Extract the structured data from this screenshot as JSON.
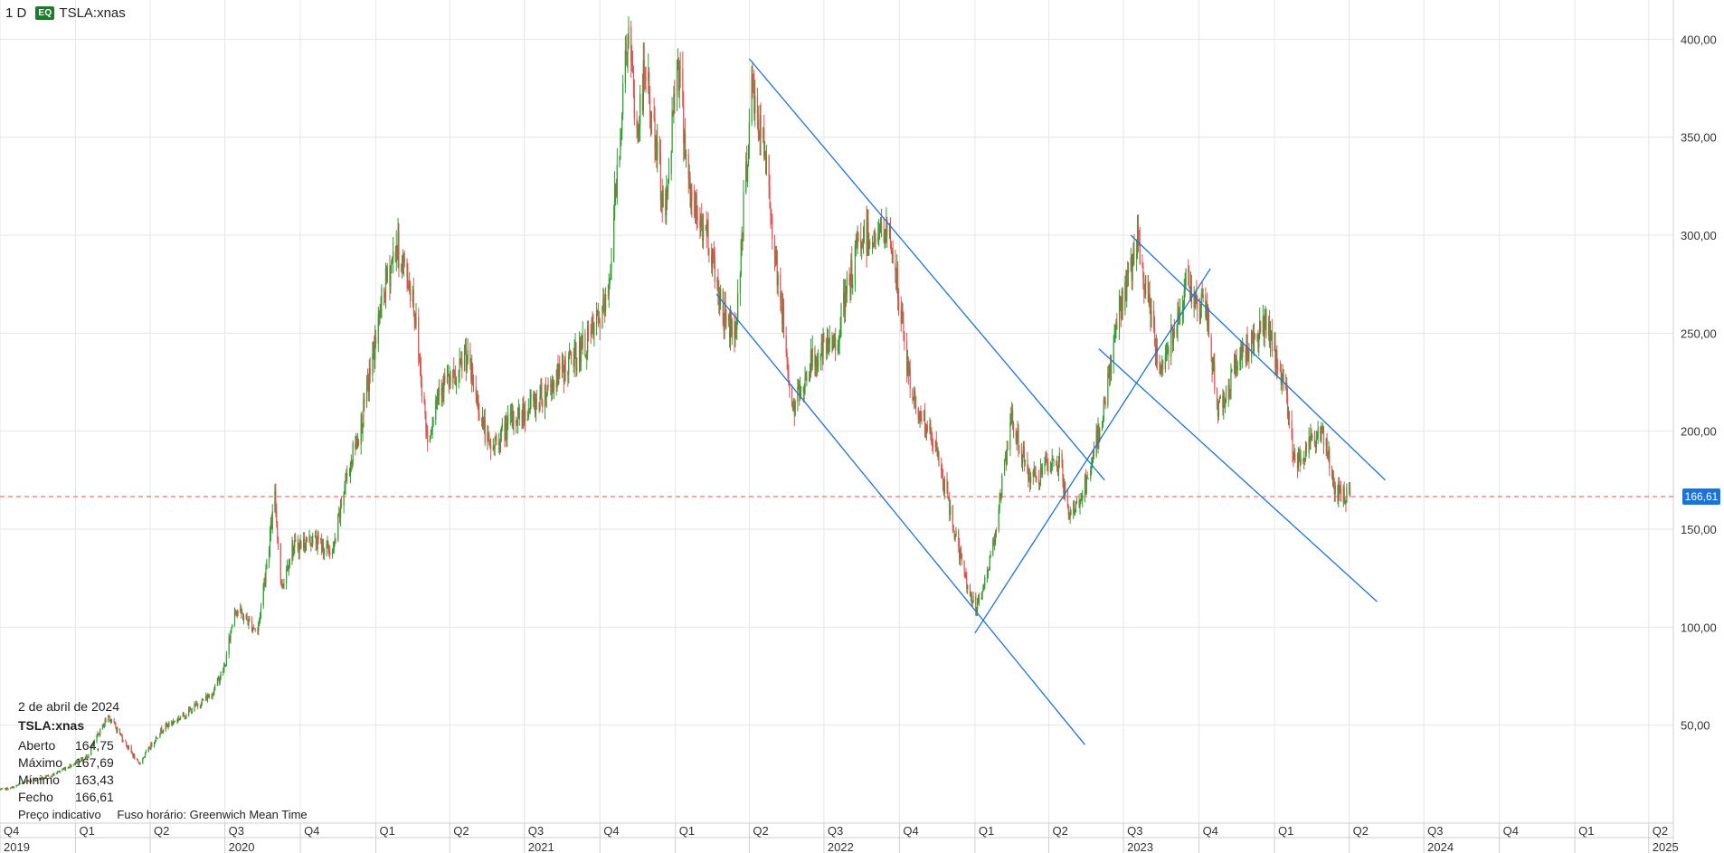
{
  "header": {
    "timeframe": "1 D",
    "badge": "EQ",
    "symbol": "TSLA:xnas"
  },
  "info": {
    "date": "2 de abril de 2024",
    "symbol": "TSLA:xnas",
    "rows": [
      {
        "label": "Aberto",
        "value": "164,75"
      },
      {
        "label": "Máximo",
        "value": "167,69"
      },
      {
        "label": "Mínimo",
        "value": "163,43"
      },
      {
        "label": "Fecho",
        "value": "166,61"
      }
    ]
  },
  "footer": {
    "note": "Preço indicativo",
    "timezone": "Fuso horário: Greenwich Mean Time"
  },
  "last_price_label": "166,61",
  "colors": {
    "up": "#2ca02c",
    "down": "#e05252",
    "trendline": "#1a73d9",
    "last_price": "#e05252",
    "grid": "#e6e6e6"
  },
  "chart_data": {
    "type": "candlestick",
    "title": "",
    "symbol": "TSLA:xnas",
    "interval": "1 D",
    "ylim": [
      0,
      420
    ],
    "y_ticks": [
      {
        "value": 50,
        "label": "50,00"
      },
      {
        "value": 100,
        "label": "100,00"
      },
      {
        "value": 150,
        "label": "150,00"
      },
      {
        "value": 200,
        "label": "200,00"
      },
      {
        "value": 250,
        "label": "250,00"
      },
      {
        "value": 300,
        "label": "300,00"
      },
      {
        "value": 350,
        "label": "350,00"
      },
      {
        "value": 400,
        "label": "400,00"
      }
    ],
    "x_range": [
      "2019-10-01",
      "2025-05-01"
    ],
    "quarter_ticks": [
      {
        "date": "2019-10-01",
        "label": "Q4"
      },
      {
        "date": "2020-01-01",
        "label": "Q1"
      },
      {
        "date": "2020-04-01",
        "label": "Q2"
      },
      {
        "date": "2020-07-01",
        "label": "Q3"
      },
      {
        "date": "2020-10-01",
        "label": "Q4"
      },
      {
        "date": "2021-01-01",
        "label": "Q1"
      },
      {
        "date": "2021-04-01",
        "label": "Q2"
      },
      {
        "date": "2021-07-01",
        "label": "Q3"
      },
      {
        "date": "2021-10-01",
        "label": "Q4"
      },
      {
        "date": "2022-01-01",
        "label": "Q1"
      },
      {
        "date": "2022-04-01",
        "label": "Q2"
      },
      {
        "date": "2022-07-01",
        "label": "Q3"
      },
      {
        "date": "2022-10-01",
        "label": "Q4"
      },
      {
        "date": "2023-01-01",
        "label": "Q1"
      },
      {
        "date": "2023-04-01",
        "label": "Q2"
      },
      {
        "date": "2023-07-01",
        "label": "Q3"
      },
      {
        "date": "2023-10-01",
        "label": "Q4"
      },
      {
        "date": "2024-01-01",
        "label": "Q1"
      },
      {
        "date": "2024-04-01",
        "label": "Q2"
      },
      {
        "date": "2024-07-01",
        "label": "Q3"
      },
      {
        "date": "2024-10-01",
        "label": "Q4"
      },
      {
        "date": "2025-01-01",
        "label": "Q1"
      },
      {
        "date": "2025-04-01",
        "label": "Q2"
      }
    ],
    "year_ticks": [
      {
        "date": "2019-10-01",
        "label": "2019"
      },
      {
        "date": "2020-07-01",
        "label": "2020"
      },
      {
        "date": "2021-07-01",
        "label": "2021"
      },
      {
        "date": "2022-07-01",
        "label": "2022"
      },
      {
        "date": "2023-07-01",
        "label": "2023"
      },
      {
        "date": "2024-07-01",
        "label": "2024"
      },
      {
        "date": "2025-04-01",
        "label": "2025"
      }
    ],
    "price_path": [
      [
        "2019-10-01",
        17
      ],
      [
        "2019-10-15",
        18
      ],
      [
        "2019-11-01",
        21
      ],
      [
        "2019-12-01",
        24
      ],
      [
        "2020-01-15",
        34
      ],
      [
        "2020-02-10",
        55
      ],
      [
        "2020-03-18",
        30
      ],
      [
        "2020-04-15",
        48
      ],
      [
        "2020-05-15",
        56
      ],
      [
        "2020-06-15",
        66
      ],
      [
        "2020-07-01",
        80
      ],
      [
        "2020-07-13",
        110
      ],
      [
        "2020-08-10",
        98
      ],
      [
        "2020-08-31",
        166
      ],
      [
        "2020-09-08",
        120
      ],
      [
        "2020-09-20",
        140
      ],
      [
        "2020-10-15",
        145
      ],
      [
        "2020-11-10",
        138
      ],
      [
        "2020-11-25",
        175
      ],
      [
        "2020-12-15",
        205
      ],
      [
        "2021-01-10",
        270
      ],
      [
        "2021-01-26",
        295
      ],
      [
        "2021-02-15",
        270
      ],
      [
        "2021-03-05",
        195
      ],
      [
        "2021-03-20",
        225
      ],
      [
        "2021-04-10",
        225
      ],
      [
        "2021-04-20",
        240
      ],
      [
        "2021-05-20",
        190
      ],
      [
        "2021-06-15",
        205
      ],
      [
        "2021-07-15",
        215
      ],
      [
        "2021-08-15",
        230
      ],
      [
        "2021-09-15",
        245
      ],
      [
        "2021-10-10",
        265
      ],
      [
        "2021-10-25",
        350
      ],
      [
        "2021-11-04",
        405
      ],
      [
        "2021-11-15",
        350
      ],
      [
        "2021-11-25",
        385
      ],
      [
        "2021-12-20",
        310
      ],
      [
        "2022-01-03",
        395
      ],
      [
        "2022-01-20",
        315
      ],
      [
        "2022-02-10",
        300
      ],
      [
        "2022-02-28",
        260
      ],
      [
        "2022-03-15",
        250
      ],
      [
        "2022-04-04",
        375
      ],
      [
        "2022-04-20",
        340
      ],
      [
        "2022-05-24",
        210
      ],
      [
        "2022-06-15",
        235
      ],
      [
        "2022-07-15",
        245
      ],
      [
        "2022-08-15",
        300
      ],
      [
        "2022-09-20",
        300
      ],
      [
        "2022-10-15",
        220
      ],
      [
        "2022-11-15",
        190
      ],
      [
        "2022-12-20",
        125
      ],
      [
        "2023-01-03",
        108
      ],
      [
        "2023-01-20",
        135
      ],
      [
        "2023-02-15",
        205
      ],
      [
        "2023-03-10",
        175
      ],
      [
        "2023-04-15",
        185
      ],
      [
        "2023-04-25",
        155
      ],
      [
        "2023-05-20",
        175
      ],
      [
        "2023-06-10",
        220
      ],
      [
        "2023-06-25",
        260
      ],
      [
        "2023-07-18",
        295
      ],
      [
        "2023-08-15",
        230
      ],
      [
        "2023-09-15",
        275
      ],
      [
        "2023-10-10",
        260
      ],
      [
        "2023-10-25",
        210
      ],
      [
        "2023-11-15",
        235
      ],
      [
        "2023-12-20",
        255
      ],
      [
        "2024-01-15",
        220
      ],
      [
        "2024-01-25",
        185
      ],
      [
        "2024-02-15",
        195
      ],
      [
        "2024-02-28",
        200
      ],
      [
        "2024-03-15",
        170
      ],
      [
        "2024-04-02",
        166.61
      ]
    ],
    "last_price": 166.61,
    "trendlines": [
      {
        "from": [
          "2022-04-01",
          390
        ],
        "to": [
          "2023-06-08",
          175
        ]
      },
      {
        "from": [
          "2022-02-20",
          270
        ],
        "to": [
          "2023-05-15",
          40
        ]
      },
      {
        "from": [
          "2023-01-01",
          97
        ],
        "to": [
          "2023-10-15",
          283
        ]
      },
      {
        "from": [
          "2023-07-10",
          300
        ],
        "to": [
          "2024-05-15",
          175
        ]
      },
      {
        "from": [
          "2023-06-01",
          242
        ],
        "to": [
          "2024-05-05",
          113
        ]
      }
    ]
  }
}
